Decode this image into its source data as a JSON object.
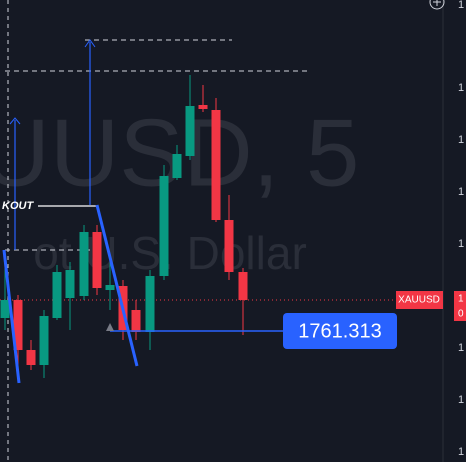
{
  "watermark": {
    "symbol": "UUSD, 5",
    "description": "ot U.S. Dollar"
  },
  "annotation": "KOUT",
  "price_axis": {
    "labels": [
      "1",
      "1",
      "1",
      "1",
      "1",
      "1",
      "1",
      "1",
      "1"
    ]
  },
  "symbol_tag": {
    "name": "XAUUSD",
    "price_lines": [
      "1",
      "0"
    ]
  },
  "measure_label": "1761.313"
}
